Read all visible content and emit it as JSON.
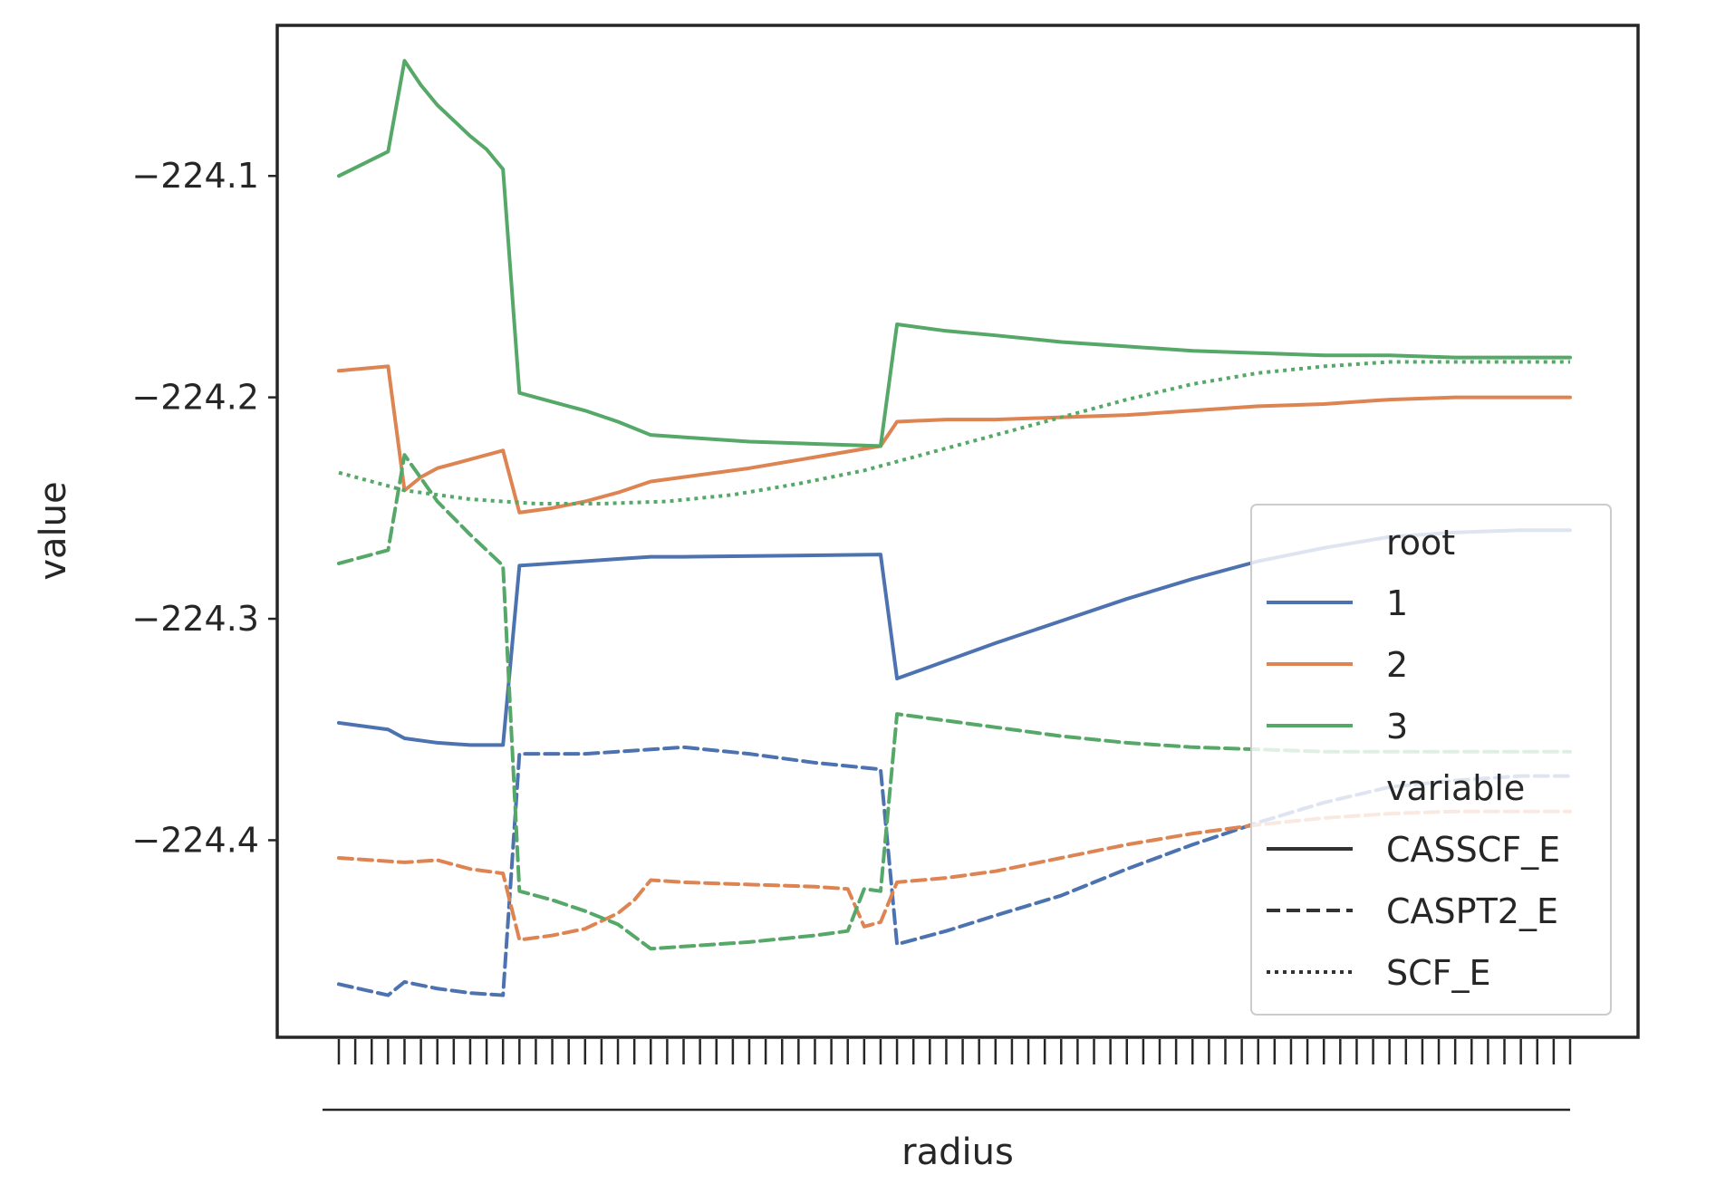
{
  "chart_data": {
    "type": "line",
    "xlabel": "radius",
    "ylabel": "value",
    "ylim": [
      -224.489,
      -224.032
    ],
    "yticks": [
      -224.1,
      -224.2,
      -224.3,
      -224.4
    ],
    "ytick_labels": [
      "−224.1",
      "−224.2",
      "−224.3",
      "−224.4"
    ],
    "x_count": 76,
    "legend": {
      "placement": "lower-right",
      "hue_title": "root",
      "style_title": "variable",
      "hue_entries": [
        "1",
        "2",
        "3"
      ],
      "style_entries": [
        "CASSCF_E",
        "CASPT2_E",
        "SCF_E"
      ]
    },
    "colors": {
      "1": "#4c72b0",
      "2": "#dd8452",
      "3": "#55a868",
      "neutral": "#333333"
    },
    "series": [
      {
        "name": "CASSCF_E",
        "root": "1",
        "style": "solid",
        "points": [
          [
            0,
            -224.347
          ],
          [
            3,
            -224.35
          ],
          [
            4,
            -224.354
          ],
          [
            6,
            -224.356
          ],
          [
            8,
            -224.357
          ],
          [
            10,
            -224.357
          ],
          [
            11,
            -224.276
          ],
          [
            13,
            -224.275
          ],
          [
            15,
            -224.274
          ],
          [
            17,
            -224.273
          ],
          [
            19,
            -224.272
          ],
          [
            21,
            -224.272
          ],
          [
            33,
            -224.271
          ],
          [
            34,
            -224.327
          ],
          [
            37,
            -224.319
          ],
          [
            40,
            -224.311
          ],
          [
            44,
            -224.301
          ],
          [
            48,
            -224.291
          ],
          [
            52,
            -224.282
          ],
          [
            56,
            -224.274
          ],
          [
            60,
            -224.268
          ],
          [
            64,
            -224.263
          ],
          [
            68,
            -224.261
          ],
          [
            72,
            -224.26
          ],
          [
            75,
            -224.26
          ]
        ]
      },
      {
        "name": "CASSCF_E",
        "root": "2",
        "style": "solid",
        "points": [
          [
            0,
            -224.188
          ],
          [
            3,
            -224.186
          ],
          [
            4,
            -224.242
          ],
          [
            5,
            -224.236
          ],
          [
            6,
            -224.232
          ],
          [
            8,
            -224.228
          ],
          [
            10,
            -224.224
          ],
          [
            11,
            -224.252
          ],
          [
            13,
            -224.25
          ],
          [
            15,
            -224.247
          ],
          [
            17,
            -224.243
          ],
          [
            19,
            -224.238
          ],
          [
            21,
            -224.236
          ],
          [
            25,
            -224.232
          ],
          [
            29,
            -224.227
          ],
          [
            33,
            -224.222
          ],
          [
            34,
            -224.211
          ],
          [
            37,
            -224.21
          ],
          [
            40,
            -224.21
          ],
          [
            44,
            -224.209
          ],
          [
            48,
            -224.208
          ],
          [
            52,
            -224.206
          ],
          [
            56,
            -224.204
          ],
          [
            60,
            -224.203
          ],
          [
            64,
            -224.201
          ],
          [
            68,
            -224.2
          ],
          [
            72,
            -224.2
          ],
          [
            75,
            -224.2
          ]
        ]
      },
      {
        "name": "CASSCF_E",
        "root": "3",
        "style": "solid",
        "points": [
          [
            0,
            -224.1
          ],
          [
            3,
            -224.089
          ],
          [
            4,
            -224.048
          ],
          [
            5,
            -224.059
          ],
          [
            6,
            -224.068
          ],
          [
            7,
            -224.075
          ],
          [
            8,
            -224.082
          ],
          [
            9,
            -224.088
          ],
          [
            10,
            -224.097
          ],
          [
            11,
            -224.198
          ],
          [
            13,
            -224.202
          ],
          [
            15,
            -224.206
          ],
          [
            17,
            -224.211
          ],
          [
            19,
            -224.217
          ],
          [
            21,
            -224.218
          ],
          [
            25,
            -224.22
          ],
          [
            29,
            -224.221
          ],
          [
            33,
            -224.222
          ],
          [
            34,
            -224.167
          ],
          [
            37,
            -224.17
          ],
          [
            40,
            -224.172
          ],
          [
            44,
            -224.175
          ],
          [
            48,
            -224.177
          ],
          [
            52,
            -224.179
          ],
          [
            56,
            -224.18
          ],
          [
            60,
            -224.181
          ],
          [
            64,
            -224.181
          ],
          [
            68,
            -224.182
          ],
          [
            72,
            -224.182
          ],
          [
            75,
            -224.182
          ]
        ]
      },
      {
        "name": "CASPT2_E",
        "root": "1",
        "style": "dashed",
        "points": [
          [
            0,
            -224.465
          ],
          [
            3,
            -224.47
          ],
          [
            4,
            -224.464
          ],
          [
            6,
            -224.467
          ],
          [
            8,
            -224.469
          ],
          [
            10,
            -224.47
          ],
          [
            11,
            -224.361
          ],
          [
            13,
            -224.361
          ],
          [
            15,
            -224.361
          ],
          [
            17,
            -224.36
          ],
          [
            19,
            -224.359
          ],
          [
            21,
            -224.358
          ],
          [
            25,
            -224.361
          ],
          [
            29,
            -224.365
          ],
          [
            33,
            -224.368
          ],
          [
            34,
            -224.447
          ],
          [
            37,
            -224.441
          ],
          [
            40,
            -224.434
          ],
          [
            44,
            -224.425
          ],
          [
            48,
            -224.413
          ],
          [
            52,
            -224.402
          ],
          [
            56,
            -224.392
          ],
          [
            60,
            -224.383
          ],
          [
            64,
            -224.376
          ],
          [
            68,
            -224.373
          ],
          [
            72,
            -224.371
          ],
          [
            75,
            -224.371
          ]
        ]
      },
      {
        "name": "CASPT2_E",
        "root": "2",
        "style": "dashed",
        "points": [
          [
            0,
            -224.408
          ],
          [
            2,
            -224.409
          ],
          [
            4,
            -224.41
          ],
          [
            6,
            -224.409
          ],
          [
            8,
            -224.413
          ],
          [
            10,
            -224.415
          ],
          [
            11,
            -224.445
          ],
          [
            13,
            -224.443
          ],
          [
            15,
            -224.44
          ],
          [
            17,
            -224.433
          ],
          [
            18,
            -224.427
          ],
          [
            19,
            -224.418
          ],
          [
            21,
            -224.419
          ],
          [
            25,
            -224.42
          ],
          [
            29,
            -224.421
          ],
          [
            31,
            -224.422
          ],
          [
            32,
            -224.439
          ],
          [
            33,
            -224.437
          ],
          [
            34,
            -224.419
          ],
          [
            37,
            -224.417
          ],
          [
            40,
            -224.414
          ],
          [
            44,
            -224.408
          ],
          [
            48,
            -224.402
          ],
          [
            52,
            -224.397
          ],
          [
            56,
            -224.393
          ],
          [
            60,
            -224.39
          ],
          [
            64,
            -224.388
          ],
          [
            68,
            -224.387
          ],
          [
            72,
            -224.387
          ],
          [
            75,
            -224.387
          ]
        ]
      },
      {
        "name": "CASPT2_E",
        "root": "3",
        "style": "dashed",
        "points": [
          [
            0,
            -224.275
          ],
          [
            3,
            -224.269
          ],
          [
            4,
            -224.226
          ],
          [
            6,
            -224.247
          ],
          [
            8,
            -224.262
          ],
          [
            10,
            -224.276
          ],
          [
            11,
            -224.423
          ],
          [
            13,
            -224.427
          ],
          [
            15,
            -224.432
          ],
          [
            17,
            -224.438
          ],
          [
            19,
            -224.449
          ],
          [
            21,
            -224.448
          ],
          [
            25,
            -224.446
          ],
          [
            29,
            -224.443
          ],
          [
            31,
            -224.441
          ],
          [
            32,
            -224.422
          ],
          [
            33,
            -224.423
          ],
          [
            34,
            -224.343
          ],
          [
            37,
            -224.346
          ],
          [
            40,
            -224.349
          ],
          [
            44,
            -224.353
          ],
          [
            48,
            -224.356
          ],
          [
            52,
            -224.358
          ],
          [
            56,
            -224.359
          ],
          [
            60,
            -224.36
          ],
          [
            64,
            -224.36
          ],
          [
            68,
            -224.36
          ],
          [
            72,
            -224.36
          ],
          [
            75,
            -224.36
          ]
        ]
      },
      {
        "name": "SCF_E",
        "root": "3",
        "style": "dotted",
        "points": [
          [
            0,
            -224.234
          ],
          [
            4,
            -224.242
          ],
          [
            8,
            -224.246
          ],
          [
            12,
            -224.248
          ],
          [
            16,
            -224.248
          ],
          [
            20,
            -224.247
          ],
          [
            24,
            -224.244
          ],
          [
            28,
            -224.239
          ],
          [
            32,
            -224.233
          ],
          [
            36,
            -224.225
          ],
          [
            40,
            -224.217
          ],
          [
            44,
            -224.209
          ],
          [
            48,
            -224.201
          ],
          [
            52,
            -224.194
          ],
          [
            56,
            -224.189
          ],
          [
            60,
            -224.186
          ],
          [
            64,
            -224.184
          ],
          [
            68,
            -224.184
          ],
          [
            72,
            -224.184
          ],
          [
            75,
            -224.184
          ]
        ]
      }
    ]
  }
}
